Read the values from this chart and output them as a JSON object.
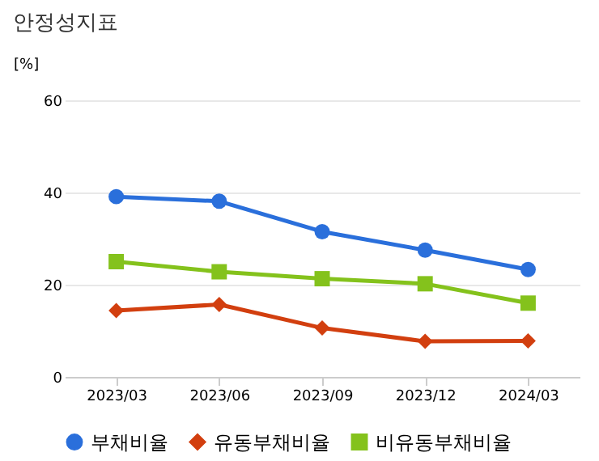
{
  "chart_data": {
    "type": "line",
    "title": "안정성지표",
    "ylabel": "[%]",
    "categories": [
      "2023/03",
      "2023/06",
      "2023/09",
      "2023/12",
      "2024/03"
    ],
    "series": [
      {
        "name": "부채비율",
        "color": "#2a6fdb",
        "marker": "circle",
        "values": [
          39.1,
          38.1,
          31.5,
          27.5,
          23.3
        ]
      },
      {
        "name": "유동부채비율",
        "color": "#d23f0f",
        "marker": "diamond",
        "values": [
          14.4,
          15.7,
          10.6,
          7.7,
          7.8
        ]
      },
      {
        "name": "비유동부채비율",
        "color": "#84c21c",
        "marker": "square",
        "values": [
          25.0,
          22.8,
          21.3,
          20.2,
          16.0
        ]
      }
    ],
    "ylim": [
      0,
      60
    ],
    "yticks": [
      0,
      20,
      40,
      60
    ],
    "grid": "y",
    "legend": "bottom"
  }
}
